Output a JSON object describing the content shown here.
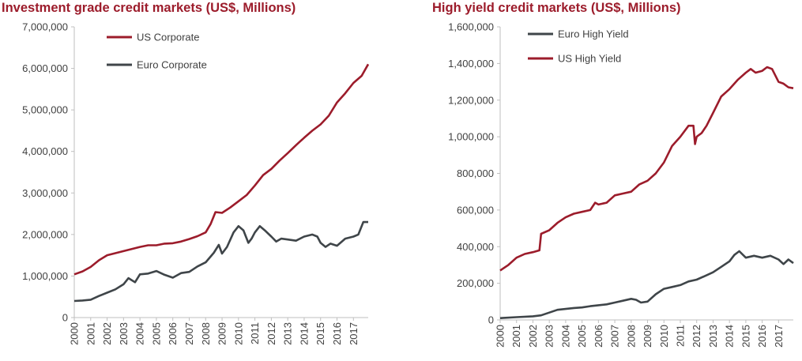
{
  "chart_data": [
    {
      "type": "line",
      "title": "Investment grade credit markets (US$, Millions)",
      "xlabel": "",
      "ylabel": "",
      "ylim": [
        0,
        7000000
      ],
      "yticks": [
        "0",
        "1,000,000",
        "2,000,000",
        "3,000,000",
        "4,000,000",
        "5,000,000",
        "6,000,000",
        "7,000,000"
      ],
      "xticks": [
        "2000",
        "2001",
        "2002",
        "2003",
        "2004",
        "2005",
        "2006",
        "2007",
        "2008",
        "2009",
        "2010",
        "2011",
        "2012",
        "2013",
        "2014",
        "2015",
        "2016",
        "2017"
      ],
      "xlim": [
        2000.0,
        2017.9
      ],
      "grid": false,
      "legend": "top-left",
      "series": [
        {
          "name": "US Corporate",
          "color": "#9c1c2b",
          "x": [
            2000.0,
            2000.5,
            2001.0,
            2001.5,
            2002.0,
            2002.5,
            2003.0,
            2003.5,
            2004.0,
            2004.5,
            2005.0,
            2005.5,
            2006.0,
            2006.5,
            2007.0,
            2007.5,
            2008.0,
            2008.3,
            2008.6,
            2009.0,
            2009.5,
            2010.0,
            2010.5,
            2011.0,
            2011.5,
            2012.0,
            2012.5,
            2013.0,
            2013.5,
            2014.0,
            2014.5,
            2015.0,
            2015.5,
            2016.0,
            2016.5,
            2017.0,
            2017.5,
            2017.9
          ],
          "y": [
            1040000,
            1110000,
            1220000,
            1380000,
            1500000,
            1550000,
            1600000,
            1650000,
            1700000,
            1740000,
            1740000,
            1780000,
            1790000,
            1830000,
            1890000,
            1960000,
            2050000,
            2250000,
            2540000,
            2520000,
            2650000,
            2800000,
            2950000,
            3180000,
            3430000,
            3580000,
            3780000,
            3960000,
            4150000,
            4330000,
            4500000,
            4650000,
            4860000,
            5180000,
            5400000,
            5650000,
            5820000,
            6100000
          ]
        },
        {
          "name": "Euro Corporate",
          "color": "#3f4549",
          "x": [
            2000.0,
            2000.5,
            2001.0,
            2001.5,
            2002.0,
            2002.5,
            2003.0,
            2003.3,
            2003.7,
            2004.0,
            2004.5,
            2005.0,
            2005.5,
            2006.0,
            2006.5,
            2007.0,
            2007.5,
            2008.0,
            2008.5,
            2008.8,
            2009.0,
            2009.3,
            2009.7,
            2010.0,
            2010.3,
            2010.6,
            2010.8,
            2011.0,
            2011.3,
            2011.6,
            2012.0,
            2012.3,
            2012.6,
            2013.0,
            2013.5,
            2014.0,
            2014.5,
            2014.8,
            2015.0,
            2015.3,
            2015.6,
            2016.0,
            2016.5,
            2017.0,
            2017.3,
            2017.6,
            2017.9
          ],
          "y": [
            400000,
            410000,
            430000,
            520000,
            600000,
            680000,
            800000,
            950000,
            850000,
            1040000,
            1060000,
            1120000,
            1030000,
            960000,
            1070000,
            1100000,
            1230000,
            1330000,
            1560000,
            1750000,
            1540000,
            1700000,
            2050000,
            2200000,
            2100000,
            1800000,
            1900000,
            2050000,
            2200000,
            2100000,
            1950000,
            1830000,
            1900000,
            1880000,
            1850000,
            1950000,
            2000000,
            1950000,
            1800000,
            1700000,
            1780000,
            1730000,
            1900000,
            1950000,
            2000000,
            2300000,
            2300000
          ]
        }
      ]
    },
    {
      "type": "line",
      "title": "High yield credit markets (US$, Millions)",
      "xlabel": "",
      "ylabel": "",
      "ylim": [
        0,
        1600000
      ],
      "yticks": [
        "0",
        "200,000",
        "400,000",
        "600,000",
        "800,000",
        "1,000,000",
        "1,200,000",
        "1,400,000",
        "1,600,000"
      ],
      "xticks": [
        "2000",
        "2001",
        "2002",
        "2003",
        "2004",
        "2005",
        "2006",
        "2007",
        "2008",
        "2009",
        "2010",
        "2011",
        "2012",
        "2013",
        "2014",
        "2015",
        "2016",
        "2017"
      ],
      "xlim": [
        2000.0,
        2017.9
      ],
      "grid": false,
      "legend": "top-left",
      "series": [
        {
          "name": "Euro High Yield",
          "color": "#3f4549",
          "x": [
            2000.0,
            2001.0,
            2002.0,
            2002.5,
            2003.0,
            2003.5,
            2004.0,
            2004.5,
            2005.0,
            2005.5,
            2006.0,
            2006.5,
            2007.0,
            2007.5,
            2008.0,
            2008.3,
            2008.6,
            2009.0,
            2009.5,
            2010.0,
            2010.5,
            2011.0,
            2011.5,
            2012.0,
            2012.5,
            2013.0,
            2013.5,
            2014.0,
            2014.3,
            2014.6,
            2015.0,
            2015.5,
            2016.0,
            2016.5,
            2017.0,
            2017.3,
            2017.6,
            2017.9
          ],
          "y": [
            10000,
            15000,
            20000,
            25000,
            40000,
            55000,
            60000,
            65000,
            68000,
            75000,
            80000,
            85000,
            95000,
            105000,
            115000,
            110000,
            95000,
            100000,
            140000,
            170000,
            180000,
            190000,
            210000,
            220000,
            240000,
            260000,
            290000,
            320000,
            355000,
            375000,
            340000,
            350000,
            340000,
            350000,
            330000,
            305000,
            330000,
            310000
          ]
        },
        {
          "name": "US High Yield",
          "color": "#9c1c2b",
          "x": [
            2000.0,
            2000.5,
            2001.0,
            2001.5,
            2002.0,
            2002.4,
            2002.5,
            2003.0,
            2003.5,
            2004.0,
            2004.5,
            2005.0,
            2005.5,
            2005.8,
            2006.0,
            2006.5,
            2007.0,
            2007.5,
            2008.0,
            2008.5,
            2009.0,
            2009.5,
            2010.0,
            2010.5,
            2011.0,
            2011.5,
            2011.8,
            2011.9,
            2012.0,
            2012.3,
            2012.6,
            2013.0,
            2013.5,
            2014.0,
            2014.5,
            2015.0,
            2015.3,
            2015.6,
            2016.0,
            2016.3,
            2016.6,
            2017.0,
            2017.3,
            2017.6,
            2017.9
          ],
          "y": [
            270000,
            300000,
            340000,
            360000,
            370000,
            380000,
            470000,
            490000,
            530000,
            560000,
            580000,
            590000,
            600000,
            640000,
            630000,
            640000,
            680000,
            690000,
            700000,
            740000,
            760000,
            800000,
            860000,
            950000,
            1000000,
            1060000,
            1060000,
            960000,
            1000000,
            1020000,
            1060000,
            1130000,
            1220000,
            1260000,
            1310000,
            1350000,
            1370000,
            1350000,
            1360000,
            1380000,
            1370000,
            1300000,
            1290000,
            1270000,
            1265000
          ]
        }
      ]
    }
  ]
}
